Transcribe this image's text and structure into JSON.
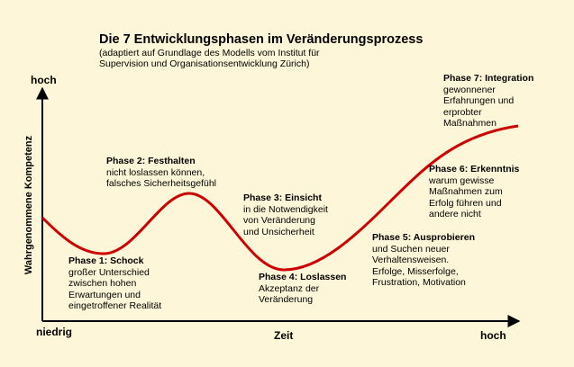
{
  "title": "Die 7 Entwicklungsphasen im Veränderungsprozess",
  "subtitle": "(adaptiert auf Grundlage des Modells vom Institut für\nSupervision und  Organisationsentwicklung Zürich)",
  "axes": {
    "y_title": "Wahrgenommene Kompetenz",
    "y_high": "hoch",
    "x_low": "niedrig",
    "x_title": "Zeit",
    "x_high": "hoch"
  },
  "phases": [
    {
      "title": "Phase 1: Schock",
      "desc": "großer Unterschied\nzwischen hohen\nErwartungen und\neingetroffener Realität"
    },
    {
      "title": "Phase 2: Festhalten",
      "desc": "nicht loslassen können,\nfalsches Sicherheitsgefühl"
    },
    {
      "title": "Phase 3: Einsicht",
      "desc": "in die Notwendigkeit\nvon Veränderung\nund Unsicherheit"
    },
    {
      "title": "Phase 4: Loslassen",
      "desc": "Akzeptanz der\nVeränderung"
    },
    {
      "title": "Phase 5: Ausprobieren",
      "desc": "und Suchen neuer\nVerhaltensweisen.\nErfolge, Misserfolge,\nFrustration, Motivation"
    },
    {
      "title": "Phase 6: Erkenntnis",
      "desc": "warum gewisse\nMaßnahmen zum\nErfolg führen und\nandere nicht"
    },
    {
      "title": "Phase 7: Integration",
      "desc": "gewonnener\nErfahrungen und\nerprobter\nMaßnahmen"
    }
  ],
  "colors": {
    "background": "#fdf6d8",
    "curve": "#cc0000",
    "axes": "#000000"
  }
}
